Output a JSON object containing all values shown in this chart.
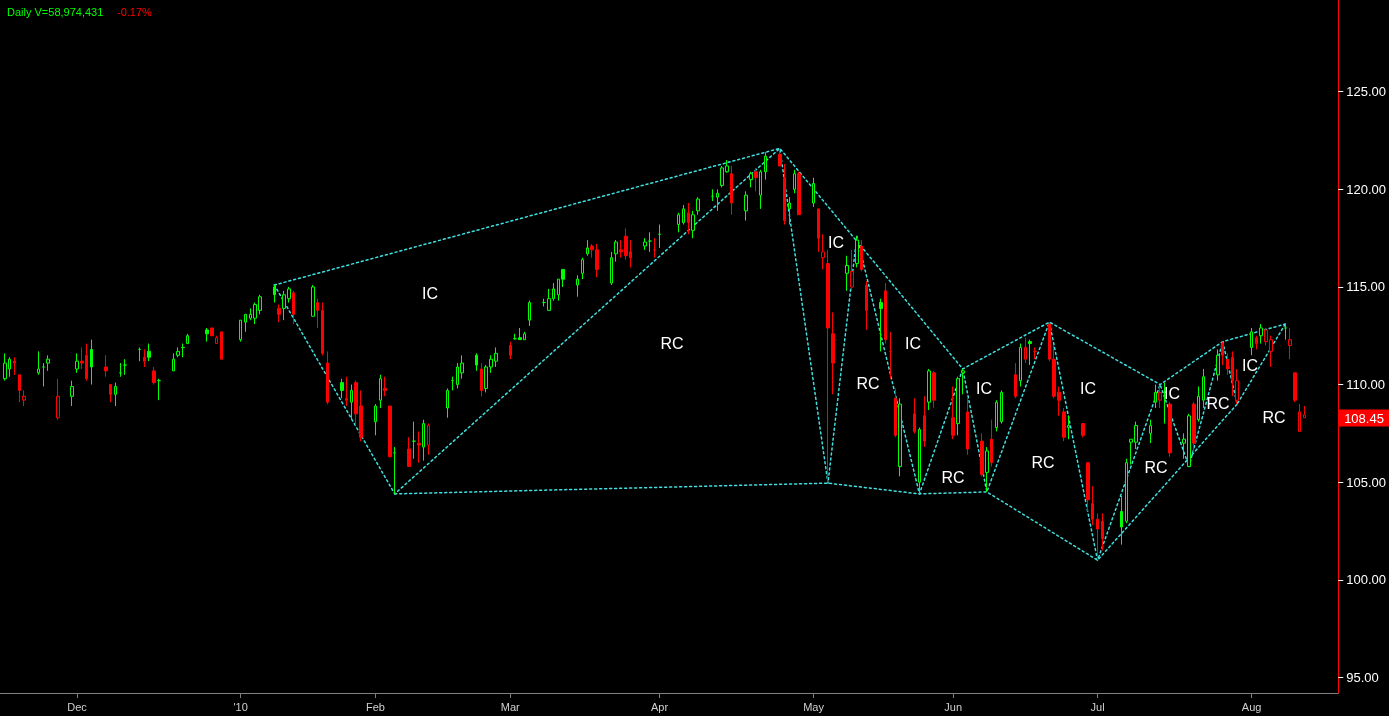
{
  "chart_data": {
    "type": "candlestick",
    "title": "Daily V=58,974,431",
    "subtitle": "-0.17%",
    "x": [
      "2009-11-16",
      "2009-11-17",
      "2009-11-18",
      "2009-11-19",
      "2009-11-20",
      "2009-11-23",
      "2009-11-24",
      "2009-11-25",
      "2009-11-27",
      "2009-11-30",
      "2009-12-01",
      "2009-12-02",
      "2009-12-03",
      "2009-12-04",
      "2009-12-07",
      "2009-12-08",
      "2009-12-09",
      "2009-12-10",
      "2009-12-11",
      "2009-12-14",
      "2009-12-15",
      "2009-12-16",
      "2009-12-17",
      "2009-12-18",
      "2009-12-21",
      "2009-12-22",
      "2009-12-23",
      "2009-12-24",
      "2009-12-28",
      "2009-12-29",
      "2009-12-30",
      "2009-12-31",
      "2010-01-04",
      "2010-01-05",
      "2010-01-06",
      "2010-01-07",
      "2010-01-08",
      "2010-01-11",
      "2010-01-12",
      "2010-01-13",
      "2010-01-14",
      "2010-01-15",
      "2010-01-19",
      "2010-01-20",
      "2010-01-21",
      "2010-01-22",
      "2010-01-25",
      "2010-01-26",
      "2010-01-27",
      "2010-01-28",
      "2010-01-29",
      "2010-02-01",
      "2010-02-02",
      "2010-02-03",
      "2010-02-04",
      "2010-02-05",
      "2010-02-08",
      "2010-02-09",
      "2010-02-10",
      "2010-02-11",
      "2010-02-12",
      "2010-02-16",
      "2010-02-17",
      "2010-02-18",
      "2010-02-19",
      "2010-02-22",
      "2010-02-23",
      "2010-02-24",
      "2010-02-25",
      "2010-02-26",
      "2010-03-01",
      "2010-03-02",
      "2010-03-03",
      "2010-03-04",
      "2010-03-05",
      "2010-03-08",
      "2010-03-09",
      "2010-03-10",
      "2010-03-11",
      "2010-03-12",
      "2010-03-15",
      "2010-03-16",
      "2010-03-17",
      "2010-03-18",
      "2010-03-19",
      "2010-03-22",
      "2010-03-23",
      "2010-03-24",
      "2010-03-25",
      "2010-03-26",
      "2010-03-29",
      "2010-03-30",
      "2010-03-31",
      "2010-04-01",
      "2010-04-05",
      "2010-04-06",
      "2010-04-07",
      "2010-04-08",
      "2010-04-09",
      "2010-04-12",
      "2010-04-13",
      "2010-04-14",
      "2010-04-15",
      "2010-04-16",
      "2010-04-19",
      "2010-04-20",
      "2010-04-21",
      "2010-04-22",
      "2010-04-23",
      "2010-04-26",
      "2010-04-27",
      "2010-04-28",
      "2010-04-29",
      "2010-04-30",
      "2010-05-03",
      "2010-05-04",
      "2010-05-05",
      "2010-05-06",
      "2010-05-07",
      "2010-05-10",
      "2010-05-11",
      "2010-05-12",
      "2010-05-13",
      "2010-05-14",
      "2010-05-17",
      "2010-05-18",
      "2010-05-19",
      "2010-05-20",
      "2010-05-21",
      "2010-05-24",
      "2010-05-25",
      "2010-05-26",
      "2010-05-27",
      "2010-05-28",
      "2010-06-01",
      "2010-06-02",
      "2010-06-03",
      "2010-06-04",
      "2010-06-07",
      "2010-06-08",
      "2010-06-09",
      "2010-06-10",
      "2010-06-11",
      "2010-06-14",
      "2010-06-15",
      "2010-06-16",
      "2010-06-17",
      "2010-06-18",
      "2010-06-21",
      "2010-06-22",
      "2010-06-23",
      "2010-06-24",
      "2010-06-25",
      "2010-06-28",
      "2010-06-29",
      "2010-06-30",
      "2010-07-01",
      "2010-07-02",
      "2010-07-06",
      "2010-07-07",
      "2010-07-08",
      "2010-07-09",
      "2010-07-12",
      "2010-07-13",
      "2010-07-14",
      "2010-07-15",
      "2010-07-16",
      "2010-07-19",
      "2010-07-20",
      "2010-07-21",
      "2010-07-22",
      "2010-07-23",
      "2010-07-26",
      "2010-07-27",
      "2010-07-28",
      "2010-07-29",
      "2010-07-30",
      "2010-08-02",
      "2010-08-03",
      "2010-08-04",
      "2010-08-05",
      "2010-08-06",
      "2010-08-09",
      "2010-08-10",
      "2010-08-11",
      "2010-08-12",
      "2010-08-13"
    ],
    "ohlc": [
      [
        110.3,
        111.6,
        110.2,
        111.1
      ],
      [
        110.8,
        111.4,
        110.4,
        111.3
      ],
      [
        111.2,
        111.4,
        110.5,
        111.1
      ],
      [
        110.5,
        110.5,
        109.1,
        109.7
      ],
      [
        109.2,
        109.7,
        108.9,
        109.4
      ],
      [
        110.6,
        111.7,
        110.5,
        110.8
      ],
      [
        110.9,
        111.1,
        109.9,
        110.9
      ],
      [
        111.1,
        111.5,
        110.7,
        111.3
      ],
      [
        108.3,
        110.3,
        108.2,
        109.4
      ],
      [
        109.4,
        110.2,
        108.9,
        109.9
      ],
      [
        110.8,
        111.6,
        110.6,
        111.2
      ],
      [
        111.2,
        111.9,
        110.8,
        111.1
      ],
      [
        111.5,
        112.1,
        110.2,
        110.3
      ],
      [
        111.8,
        112.3,
        110.0,
        110.9
      ],
      [
        110.9,
        111.5,
        110.4,
        110.7
      ],
      [
        110.0,
        110.0,
        109.1,
        109.5
      ],
      [
        109.5,
        110.1,
        108.9,
        109.9
      ],
      [
        110.6,
        111.1,
        110.4,
        110.6
      ],
      [
        111.0,
        111.3,
        110.5,
        111.0
      ],
      [
        111.8,
        111.9,
        111.2,
        111.8
      ],
      [
        111.4,
        111.8,
        110.9,
        111.2
      ],
      [
        111.7,
        112.1,
        111.2,
        111.4
      ],
      [
        110.7,
        110.9,
        110.0,
        110.1
      ],
      [
        110.2,
        110.3,
        109.2,
        110.2
      ],
      [
        110.7,
        111.6,
        110.7,
        111.3
      ],
      [
        111.5,
        111.9,
        111.4,
        111.7
      ],
      [
        111.9,
        112.1,
        111.4,
        111.9
      ],
      [
        112.1,
        112.6,
        112.1,
        112.5
      ],
      [
        112.8,
        112.9,
        112.2,
        112.6
      ],
      [
        112.9,
        112.9,
        112.5,
        112.5
      ],
      [
        112.1,
        112.5,
        112.1,
        112.4
      ],
      [
        112.7,
        112.7,
        111.3,
        111.3
      ],
      [
        112.3,
        113.3,
        112.2,
        113.3
      ],
      [
        113.2,
        113.6,
        112.7,
        113.6
      ],
      [
        113.4,
        113.9,
        113.3,
        113.6
      ],
      [
        113.4,
        114.2,
        113.1,
        114.1
      ],
      [
        113.8,
        114.6,
        113.6,
        114.5
      ],
      [
        115.0,
        115.1,
        114.2,
        114.6
      ],
      [
        113.9,
        114.1,
        113.2,
        113.6
      ],
      [
        113.9,
        114.8,
        113.3,
        114.6
      ],
      [
        114.4,
        115.0,
        114.2,
        114.9
      ],
      [
        114.7,
        114.8,
        113.1,
        113.6
      ],
      [
        113.5,
        115.1,
        113.5,
        115.0
      ],
      [
        114.2,
        114.4,
        112.9,
        113.8
      ],
      [
        113.8,
        114.2,
        111.5,
        111.6
      ],
      [
        111.1,
        111.7,
        109.0,
        109.1
      ],
      [
        110.1,
        110.3,
        109.3,
        109.7
      ],
      [
        109.3,
        110.4,
        108.9,
        109.2
      ],
      [
        109.1,
        110.0,
        108.2,
        109.7
      ],
      [
        110.1,
        110.2,
        107.9,
        108.5
      ],
      [
        108.9,
        109.7,
        107.1,
        107.3
      ],
      [
        108.1,
        109.0,
        107.4,
        108.9
      ],
      [
        109.2,
        110.5,
        108.8,
        110.3
      ],
      [
        109.8,
        110.4,
        109.4,
        109.7
      ],
      [
        108.9,
        108.9,
        106.3,
        106.3
      ],
      [
        106.5,
        106.8,
        104.4,
        106.5
      ],
      [
        106.7,
        107.3,
        105.8,
        105.8
      ],
      [
        107.1,
        108.1,
        106.2,
        107.1
      ],
      [
        107.0,
        107.6,
        106.0,
        106.9
      ],
      [
        106.8,
        108.2,
        106.1,
        108.0
      ],
      [
        106.9,
        108.0,
        106.4,
        107.9
      ],
      [
        108.8,
        109.8,
        108.3,
        109.7
      ],
      [
        110.2,
        110.4,
        109.7,
        110.2
      ],
      [
        110.0,
        111.1,
        109.8,
        110.9
      ],
      [
        110.6,
        111.5,
        110.3,
        111.1
      ],
      [
        111.5,
        111.6,
        110.7,
        111.0
      ],
      [
        110.8,
        111.1,
        109.4,
        109.7
      ],
      [
        109.8,
        111.0,
        109.6,
        110.9
      ],
      [
        110.9,
        111.5,
        110.6,
        111.3
      ],
      [
        111.2,
        111.9,
        110.9,
        111.6
      ],
      [
        112.0,
        112.2,
        111.3,
        111.5
      ],
      [
        112.35,
        112.6,
        112.3,
        112.35
      ],
      [
        112.4,
        112.9,
        112.3,
        112.3
      ],
      [
        112.3,
        112.7,
        112.3,
        112.6
      ],
      [
        113.3,
        114.3,
        113.0,
        114.2
      ],
      [
        114.2,
        114.4,
        114.0,
        114.2
      ],
      [
        113.8,
        114.9,
        113.8,
        114.4
      ],
      [
        114.4,
        115.2,
        114.3,
        114.9
      ],
      [
        114.6,
        115.4,
        114.3,
        115.4
      ],
      [
        115.9,
        115.9,
        115.0,
        115.4
      ],
      [
        115.1,
        115.6,
        114.5,
        115.4
      ],
      [
        115.7,
        116.5,
        115.4,
        116.4
      ],
      [
        116.7,
        117.4,
        116.6,
        117.0
      ],
      [
        117.1,
        117.2,
        116.5,
        116.9
      ],
      [
        116.9,
        117.2,
        115.5,
        115.9
      ],
      [
        115.2,
        116.8,
        115.1,
        116.5
      ],
      [
        116.7,
        117.4,
        116.3,
        117.3
      ],
      [
        116.9,
        117.4,
        116.5,
        116.8
      ],
      [
        117.6,
        118.0,
        116.4,
        116.6
      ],
      [
        116.8,
        117.4,
        116.0,
        116.5
      ],
      [
        117.1,
        117.5,
        116.9,
        117.3
      ],
      [
        117.35,
        117.8,
        116.8,
        117.35
      ],
      [
        116.9,
        117.5,
        116.5,
        116.9
      ],
      [
        117.7,
        118.2,
        117.0,
        117.7
      ],
      [
        118.2,
        118.8,
        117.8,
        118.7
      ],
      [
        118.3,
        119.2,
        118.2,
        119.0
      ],
      [
        118.8,
        119.3,
        117.7,
        118.3
      ],
      [
        117.9,
        118.9,
        117.5,
        118.7
      ],
      [
        118.9,
        119.6,
        118.7,
        119.5
      ],
      [
        119.65,
        120.0,
        119.4,
        119.65
      ],
      [
        119.6,
        120.0,
        118.9,
        119.8
      ],
      [
        120.2,
        121.2,
        120.1,
        121.1
      ],
      [
        120.9,
        121.5,
        120.85,
        121.2
      ],
      [
        120.8,
        121.2,
        118.7,
        119.3
      ],
      [
        118.9,
        119.9,
        118.4,
        119.7
      ],
      [
        120.5,
        120.9,
        120.1,
        120.8
      ],
      [
        120.9,
        121.1,
        119.9,
        120.6
      ],
      [
        119.7,
        121.0,
        119.0,
        120.9
      ],
      [
        120.9,
        121.9,
        120.5,
        121.7
      ],
      [
        121.8,
        122.1,
        121.2,
        121.2
      ],
      [
        120.6,
        121.3,
        118.2,
        118.4
      ],
      [
        119.0,
        119.6,
        118.2,
        119.3
      ],
      [
        120.0,
        121.0,
        119.8,
        120.8
      ],
      [
        120.8,
        120.9,
        118.7,
        118.7
      ],
      [
        119.3,
        120.6,
        119.1,
        120.3
      ],
      [
        119.0,
        119.0,
        116.8,
        117.5
      ],
      [
        116.5,
        117.7,
        115.9,
        116.8
      ],
      [
        116.2,
        116.9,
        105.0,
        112.9
      ],
      [
        112.6,
        113.7,
        109.5,
        111.1
      ],
      [
        115.7,
        116.6,
        114.8,
        116.1
      ],
      [
        115.0,
        116.9,
        114.8,
        115.8
      ],
      [
        116.2,
        117.6,
        116.0,
        117.4
      ],
      [
        117.1,
        117.4,
        115.8,
        115.9
      ],
      [
        115.1,
        115.3,
        112.8,
        113.8
      ],
      [
        114.2,
        114.4,
        111.7,
        113.9
      ],
      [
        114.8,
        115.2,
        112.1,
        112.3
      ],
      [
        111.7,
        112.7,
        110.3,
        111.7
      ],
      [
        109.3,
        109.8,
        107.3,
        107.4
      ],
      [
        105.8,
        109.3,
        105.3,
        109.0
      ],
      [
        108.5,
        109.3,
        107.5,
        107.6
      ],
      [
        105.0,
        107.8,
        104.4,
        107.7
      ],
      [
        108.4,
        109.4,
        106.8,
        107.1
      ],
      [
        109.1,
        110.8,
        108.7,
        110.7
      ],
      [
        110.6,
        110.7,
        108.8,
        109.2
      ],
      [
        108.3,
        109.9,
        107.2,
        107.4
      ],
      [
        108.0,
        110.4,
        107.4,
        110.3
      ],
      [
        110.6,
        110.8,
        109.5,
        110.7
      ],
      [
        108.6,
        109.3,
        106.4,
        106.7
      ],
      [
        107.1,
        107.5,
        105.3,
        105.4
      ],
      [
        105.5,
        106.8,
        104.5,
        106.6
      ],
      [
        107.2,
        108.2,
        105.8,
        106.0
      ],
      [
        107.8,
        109.2,
        107.6,
        109.1
      ],
      [
        108.1,
        109.7,
        108.0,
        109.6
      ],
      [
        110.5,
        111.1,
        109.3,
        109.4
      ],
      [
        110.2,
        112.1,
        109.9,
        111.9
      ],
      [
        111.3,
        112.4,
        111.1,
        111.9
      ],
      [
        112.2,
        112.3,
        111.0,
        112.1
      ],
      [
        111.7,
        111.9,
        111.3,
        111.7
      ],
      [
        113.1,
        113.2,
        111.2,
        111.3
      ],
      [
        111.3,
        112.0,
        109.3,
        109.4
      ],
      [
        109.6,
        109.9,
        108.4,
        109.2
      ],
      [
        108.6,
        108.8,
        107.1,
        107.3
      ],
      [
        107.8,
        108.4,
        107.2,
        107.9
      ],
      [
        108.0,
        108.0,
        107.3,
        107.4
      ],
      [
        106.0,
        106.0,
        103.5,
        104.1
      ],
      [
        103.9,
        104.8,
        102.8,
        103.1
      ],
      [
        103.1,
        103.4,
        101.0,
        102.6
      ],
      [
        103.0,
        103.4,
        101.5,
        102.1
      ],
      [
        103.5,
        104.3,
        101.8,
        102.7
      ],
      [
        103.0,
        106.2,
        102.9,
        106.0
      ],
      [
        107.05,
        107.2,
        105.9,
        107.2
      ],
      [
        107.05,
        108.1,
        106.7,
        107.9
      ],
      [
        107.5,
        108.2,
        107.0,
        107.9
      ],
      [
        109.1,
        110.0,
        108.8,
        109.6
      ],
      [
        109.2,
        109.9,
        108.8,
        109.6
      ],
      [
        109.6,
        110.1,
        108.0,
        109.6
      ],
      [
        109.0,
        109.1,
        106.3,
        106.5
      ],
      [
        107.0,
        107.5,
        106.2,
        107.2
      ],
      [
        105.8,
        108.5,
        105.8,
        108.4
      ],
      [
        109.0,
        109.1,
        106.5,
        107.0
      ],
      [
        108.2,
        109.9,
        108.1,
        109.4
      ],
      [
        109.2,
        110.8,
        108.8,
        110.4
      ],
      [
        110.5,
        111.8,
        110.2,
        111.5
      ],
      [
        112.1,
        112.2,
        111.0,
        111.5
      ],
      [
        111.3,
        111.6,
        110.5,
        110.8
      ],
      [
        111.4,
        111.7,
        109.4,
        110.2
      ],
      [
        109.2,
        110.8,
        109.0,
        110.2
      ],
      [
        111.9,
        112.9,
        111.5,
        112.7
      ],
      [
        112.4,
        112.5,
        111.8,
        112.1
      ],
      [
        112.5,
        113.1,
        112.1,
        112.9
      ],
      [
        112.2,
        112.9,
        112.0,
        112.8
      ],
      [
        111.7,
        112.5,
        110.9,
        112.3
      ],
      [
        112.9,
        113.1,
        112.3,
        112.9
      ],
      [
        112.0,
        112.9,
        111.3,
        112.3
      ],
      [
        110.6,
        110.6,
        109.1,
        109.2
      ],
      [
        107.6,
        109.0,
        107.6,
        108.6
      ],
      [
        108.3,
        108.9,
        108.3,
        108.45
      ]
    ],
    "colors": [
      "#00ff00",
      "#00ff00",
      "#ff0000",
      "#ff0000",
      "#ff0000",
      "#00ff00",
      "#00ff00",
      "#00ff00",
      "#ff0000",
      "#00ff00",
      "#00ff00",
      "#ff0000",
      "#ff0000",
      "#00ff00",
      "#ff0000",
      "#ff0000",
      "#00ff00",
      "#00ff00",
      "#00ff00",
      "#00ff00",
      "#ff0000",
      "#00ff00",
      "#ff0000",
      "#00ff00",
      "#00ff00",
      "#00ff00",
      "#00ff00",
      "#00ff00",
      "#00ff00",
      "#ff0000",
      "#ff0000",
      "#ff0000",
      "#00ff00",
      "#00ff00",
      "#00ff00",
      "#00ff00",
      "#00ff00",
      "#00ff00",
      "#ff0000",
      "#00ff00",
      "#00ff00",
      "#ff0000",
      "#00ff00",
      "#ff0000",
      "#ff0000",
      "#ff0000",
      "#00ff00",
      "#ff0000",
      "#00ff00",
      "#ff0000",
      "#ff0000",
      "#00ff00",
      "#00ff00",
      "#ff0000",
      "#ff0000",
      "#00ff00",
      "#ff0000",
      "#00ff00",
      "#ff0000",
      "#00ff00",
      "#ff0000",
      "#00ff00",
      "#00ff00",
      "#00ff00",
      "#00ff00",
      "#00ff00",
      "#ff0000",
      "#00ff00",
      "#00ff00",
      "#00ff00",
      "#ff0000",
      "#00ff00",
      "#00ff00",
      "#00ff00",
      "#00ff00",
      "#00ff00",
      "#00ff00",
      "#00ff00",
      "#00ff00",
      "#00ff00",
      "#00ff00",
      "#00ff00",
      "#00ff00",
      "#ff0000",
      "#ff0000",
      "#00ff00",
      "#00ff00",
      "#ff0000",
      "#ff0000",
      "#ff0000",
      "#00ff00",
      "#00ff00",
      "#ff0000",
      "#00ff00",
      "#00ff00",
      "#00ff00",
      "#ff0000",
      "#00ff00",
      "#00ff00",
      "#00ff00",
      "#00ff00",
      "#00ff00",
      "#00ff00",
      "#ff0000",
      "#00ff00",
      "#00ff00",
      "#ff0000",
      "#00ff00",
      "#00ff00",
      "#ff0000",
      "#ff0000",
      "#00ff00",
      "#00ff00",
      "#ff0000",
      "#00ff00",
      "#ff0000",
      "#ff0000",
      "#ff0000",
      "#ff0000",
      "#00ff00",
      "#ff0000",
      "#00ff00",
      "#ff0000",
      "#ff0000",
      "#00ff00",
      "#ff0000",
      "#ff0000",
      "#ff0000",
      "#00ff00",
      "#ff0000",
      "#00ff00",
      "#ff0000",
      "#00ff00",
      "#ff0000",
      "#ff0000",
      "#00ff00",
      "#00ff00",
      "#ff0000",
      "#ff0000",
      "#00ff00",
      "#ff0000",
      "#00ff00",
      "#00ff00",
      "#ff0000",
      "#00ff00",
      "#ff0000",
      "#00ff00",
      "#ff0000",
      "#ff0000",
      "#ff0000",
      "#ff0000",
      "#ff0000",
      "#00ff00",
      "#ff0000",
      "#ff0000",
      "#ff0000",
      "#ff0000",
      "#ff0000",
      "#00ff00",
      "#00ff00",
      "#00ff00",
      "#00ff00",
      "#00ff00",
      "#00ff00",
      "#ff0000",
      "#00ff00",
      "#ff0000",
      "#00ff00",
      "#00ff00",
      "#ff0000",
      "#00ff00",
      "#00ff00",
      "#00ff00",
      "#ff0000",
      "#ff0000",
      "#ff0000",
      "#ff0000",
      "#00ff00",
      "#ff0000",
      "#00ff00",
      "#ff0000",
      "#ff0000",
      "#00ff00",
      "#ff0000",
      "#ff0000",
      "#ff0000",
      "#ff0000"
    ],
    "series": [
      {
        "type": "line",
        "color": "#40e0e0",
        "x": [
          "2010-01-11",
          "2010-02-05",
          "2010-04-26",
          "2010-05-06",
          "2010-05-12",
          "2010-05-25",
          "2010-06-03",
          "2010-06-08",
          "2010-06-21",
          "2010-07-01",
          "2010-07-14",
          "2010-07-20",
          "2010-07-27",
          "2010-07-30",
          "2010-08-09"
        ],
        "values": [
          115.1,
          104.4,
          122.1,
          104.95,
          117.6,
          104.4,
          110.8,
          104.5,
          113.2,
          101.0,
          110.0,
          105.8,
          112.2,
          109.0,
          113.1
        ]
      },
      {
        "type": "line",
        "color": "#40e0e0",
        "x": [
          "2010-01-11",
          "2010-04-26",
          "2010-06-03",
          "2010-06-21",
          "2010-07-14",
          "2010-07-27",
          "2010-08-09"
        ],
        "values": [
          115.1,
          122.1,
          110.8,
          113.2,
          110.0,
          112.2,
          113.1
        ]
      },
      {
        "type": "line",
        "color": "#40e0e0",
        "x": [
          "2010-02-05",
          "2010-05-06",
          "2010-05-25",
          "2010-06-08",
          "2010-07-01",
          "2010-07-30"
        ],
        "values": [
          104.4,
          104.95,
          104.4,
          104.5,
          101.0,
          109.0
        ]
      }
    ],
    "line_style": "dotted",
    "marker": "none",
    "xlim": [
      "2009-11-15",
      "2010-08-20"
    ],
    "xticks": [
      {
        "value": "2009-12-01",
        "label": "Dec"
      },
      {
        "value": "2010-01-04",
        "label": "'10"
      },
      {
        "value": "2010-02-01",
        "label": "Feb"
      },
      {
        "value": "2010-03-01",
        "label": "Mar"
      },
      {
        "value": "2010-04-01",
        "label": "Apr"
      },
      {
        "value": "2010-05-03",
        "label": "May"
      },
      {
        "value": "2010-06-01",
        "label": "Jun"
      },
      {
        "value": "2010-07-01",
        "label": "Jul"
      },
      {
        "value": "2010-08-02",
        "label": "Aug"
      }
    ],
    "ylim": [
      94.2,
      129.7
    ],
    "yticks": [
      {
        "value": 95,
        "label": "95.00"
      },
      {
        "value": 100,
        "label": "100.00"
      },
      {
        "value": 105,
        "label": "105.00"
      },
      {
        "value": 110,
        "label": "110.00"
      },
      {
        "value": 115,
        "label": "115.00"
      },
      {
        "value": 120,
        "label": "120.00"
      },
      {
        "value": 125,
        "label": "125.00"
      }
    ],
    "annotations": [
      "IC",
      "RC",
      "IC",
      "RC",
      "IC",
      "RC",
      "IC",
      "RC",
      "IC",
      "RC",
      "IC",
      "RC",
      "IC",
      "RC",
      "108.45"
    ]
  }
}
